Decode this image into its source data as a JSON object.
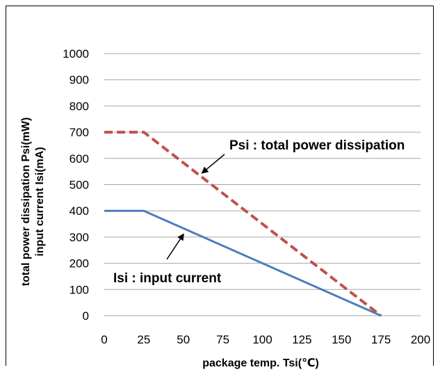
{
  "chart_data": {
    "type": "line",
    "title": "",
    "xlabel": "package temp. Tsi(℃)",
    "ylabel_lines": [
      "total power dissipation Psi(mW)",
      "input current Isi(mA)"
    ],
    "xlim": [
      0,
      200
    ],
    "ylim": [
      0,
      1000
    ],
    "x_ticks": [
      0,
      25,
      50,
      75,
      100,
      125,
      150,
      175,
      200
    ],
    "y_ticks": [
      0,
      100,
      200,
      300,
      400,
      500,
      600,
      700,
      800,
      900,
      1000
    ],
    "grid": "horizontal",
    "series": [
      {
        "name": "Psi : total power dissipation",
        "color": "#c0504d",
        "style": "dashed",
        "x": [
          0,
          25,
          175
        ],
        "y": [
          700,
          700,
          0
        ]
      },
      {
        "name": "Isi : input current",
        "color": "#4a7ebb",
        "style": "solid",
        "x": [
          0,
          25,
          175
        ],
        "y": [
          400,
          400,
          0
        ]
      }
    ],
    "annotations": [
      {
        "text": "Psi : total power dissipation",
        "series": 0,
        "arrow_to": [
          62,
          545
        ]
      },
      {
        "text": "Isi : input current",
        "series": 1,
        "arrow_to": [
          50,
          310
        ]
      }
    ]
  }
}
